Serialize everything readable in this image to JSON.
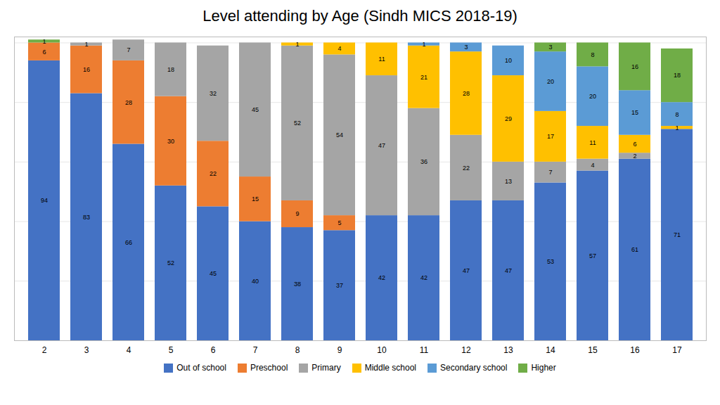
{
  "chart_data": {
    "type": "bar",
    "stacked": true,
    "title": "Level attending by Age (Sindh MICS 2018-19)",
    "categories": [
      "2",
      "3",
      "4",
      "5",
      "6",
      "7",
      "8",
      "9",
      "10",
      "11",
      "12",
      "13",
      "14",
      "15",
      "16",
      "17"
    ],
    "series": [
      {
        "name": "Out of school",
        "color": "#4472C4",
        "values": [
          94,
          83,
          66,
          52,
          45,
          40,
          38,
          37,
          42,
          42,
          47,
          47,
          53,
          57,
          61,
          71
        ]
      },
      {
        "name": "Preschool",
        "color": "#ED7D31",
        "values": [
          6,
          16,
          28,
          30,
          22,
          15,
          9,
          5,
          0,
          0,
          0,
          0,
          0,
          0,
          0,
          0
        ]
      },
      {
        "name": "Primary",
        "color": "#A5A5A5",
        "values": [
          0,
          1,
          7,
          18,
          32,
          45,
          52,
          54,
          47,
          36,
          22,
          13,
          7,
          4,
          2,
          0
        ]
      },
      {
        "name": "Middle school",
        "color": "#FFC000",
        "values": [
          0,
          0,
          0,
          0,
          0,
          0,
          1,
          4,
          11,
          21,
          28,
          29,
          17,
          11,
          6,
          1
        ]
      },
      {
        "name": "Secondary school",
        "color": "#5B9BD5",
        "values": [
          0,
          0,
          0,
          0,
          0,
          0,
          0,
          0,
          0,
          1,
          3,
          10,
          20,
          20,
          15,
          8
        ]
      },
      {
        "name": "Higher",
        "color": "#70AD47",
        "values": [
          1,
          0,
          0,
          0,
          0,
          0,
          0,
          0,
          0,
          0,
          0,
          0,
          3,
          8,
          16,
          18
        ]
      }
    ],
    "ylim": [
      0,
      102
    ],
    "yticks": [
      0,
      20,
      40,
      60,
      80,
      100
    ],
    "tick_labels": "x",
    "grid": true,
    "legend": "bottom",
    "data_labels": true
  }
}
